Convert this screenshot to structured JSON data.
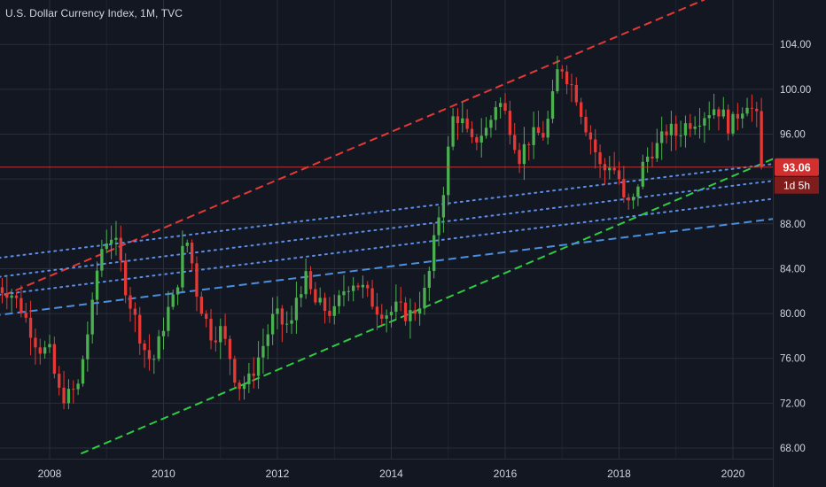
{
  "header": {
    "title": "U.S. Dollar Currency Index, 1M, TVC"
  },
  "price_label": {
    "value": "93.06",
    "countdown": "1d 5h"
  },
  "colors": {
    "background": "#131722",
    "grid": "#2a2e39",
    "up": "#4caf50",
    "down": "#e53935",
    "red_line": "#e53935",
    "green_line": "#2ecc40",
    "blue_dashed": "#4a8fe0",
    "blue_dotted": "#5b8ee6",
    "label_bg": "#d32f2f"
  },
  "chart_data": {
    "type": "candlestick",
    "xlim": [
      2007.0,
      2020.8
    ],
    "ylim": [
      67.5,
      106.5
    ],
    "y_ticks": [
      68.0,
      72.0,
      76.0,
      80.0,
      84.0,
      88.0,
      92.0,
      96.0,
      100.0,
      104.0
    ],
    "y_tick_labels": [
      "68.00",
      "72.00",
      "76.00",
      "80.00",
      "84.00",
      "88.00",
      "",
      "96.00",
      "100.00",
      "104.00"
    ],
    "x_ticks": [
      2008,
      2010,
      2012,
      2014,
      2016,
      2018,
      2020
    ],
    "x_tick_labels": [
      "2008",
      "2010",
      "2012",
      "2014",
      "2016",
      "2018",
      "2020"
    ],
    "last_price": 93.06,
    "grid": true,
    "close_anchors": [
      [
        2007.0,
        82.5
      ],
      [
        2007.3,
        82.0
      ],
      [
        2007.5,
        80.5
      ],
      [
        2007.8,
        77.0
      ],
      [
        2008.0,
        76.5
      ],
      [
        2008.15,
        73.0
      ],
      [
        2008.3,
        72.5
      ],
      [
        2008.5,
        73.5
      ],
      [
        2008.6,
        76.5
      ],
      [
        2008.75,
        80.5
      ],
      [
        2008.85,
        84.5
      ],
      [
        2008.95,
        86.5
      ],
      [
        2009.1,
        87.0
      ],
      [
        2009.2,
        85.5
      ],
      [
        2009.35,
        82.0
      ],
      [
        2009.5,
        79.5
      ],
      [
        2009.65,
        77.0
      ],
      [
        2009.8,
        75.5
      ],
      [
        2009.9,
        77.0
      ],
      [
        2010.05,
        80.0
      ],
      [
        2010.2,
        81.5
      ],
      [
        2010.35,
        86.0
      ],
      [
        2010.45,
        86.5
      ],
      [
        2010.55,
        82.5
      ],
      [
        2010.7,
        80.0
      ],
      [
        2010.85,
        78.0
      ],
      [
        2011.0,
        78.5
      ],
      [
        2011.15,
        76.5
      ],
      [
        2011.3,
        73.5
      ],
      [
        2011.5,
        74.0
      ],
      [
        2011.7,
        76.5
      ],
      [
        2011.85,
        78.5
      ],
      [
        2011.95,
        80.0
      ],
      [
        2012.1,
        79.0
      ],
      [
        2012.25,
        79.0
      ],
      [
        2012.35,
        82.0
      ],
      [
        2012.5,
        83.0
      ],
      [
        2012.65,
        81.0
      ],
      [
        2012.8,
        80.5
      ],
      [
        2013.0,
        80.0
      ],
      [
        2013.15,
        82.0
      ],
      [
        2013.3,
        83.0
      ],
      [
        2013.45,
        82.5
      ],
      [
        2013.6,
        81.5
      ],
      [
        2013.75,
        80.5
      ],
      [
        2013.95,
        80.0
      ],
      [
        2014.1,
        80.5
      ],
      [
        2014.3,
        79.8
      ],
      [
        2014.45,
        80.5
      ],
      [
        2014.6,
        82.0
      ],
      [
        2014.7,
        84.5
      ],
      [
        2014.8,
        88.0
      ],
      [
        2014.9,
        90.5
      ],
      [
        2015.0,
        94.5
      ],
      [
        2015.1,
        98.0
      ],
      [
        2015.25,
        97.0
      ],
      [
        2015.4,
        95.0
      ],
      [
        2015.55,
        96.0
      ],
      [
        2015.7,
        96.5
      ],
      [
        2015.85,
        99.0
      ],
      [
        2015.95,
        98.5
      ],
      [
        2016.1,
        96.5
      ],
      [
        2016.25,
        94.0
      ],
      [
        2016.4,
        95.5
      ],
      [
        2016.55,
        96.0
      ],
      [
        2016.7,
        96.0
      ],
      [
        2016.85,
        99.5
      ],
      [
        2016.95,
        102.5
      ],
      [
        2017.1,
        101.0
      ],
      [
        2017.25,
        99.5
      ],
      [
        2017.4,
        97.0
      ],
      [
        2017.55,
        95.0
      ],
      [
        2017.7,
        92.5
      ],
      [
        2017.85,
        93.5
      ],
      [
        2018.0,
        92.0
      ],
      [
        2018.1,
        89.5
      ],
      [
        2018.25,
        90.0
      ],
      [
        2018.4,
        93.0
      ],
      [
        2018.55,
        94.5
      ],
      [
        2018.7,
        95.0
      ],
      [
        2018.85,
        96.5
      ],
      [
        2019.0,
        96.0
      ],
      [
        2019.2,
        97.0
      ],
      [
        2019.4,
        97.5
      ],
      [
        2019.55,
        98.0
      ],
      [
        2019.7,
        98.5
      ],
      [
        2019.85,
        97.5
      ],
      [
        2019.95,
        96.5
      ],
      [
        2020.1,
        98.0
      ],
      [
        2020.25,
        99.0
      ],
      [
        2020.35,
        98.0
      ],
      [
        2020.45,
        97.0
      ],
      [
        2020.55,
        93.06
      ]
    ],
    "trend_lines": [
      {
        "style": "dashed",
        "color": "red",
        "from": [
          2007.0,
          81.2
        ],
        "to": [
          2019.5,
          108.0
        ]
      },
      {
        "style": "dashed",
        "color": "green",
        "from": [
          2008.55,
          67.5
        ],
        "to": [
          2020.8,
          94.0
        ]
      },
      {
        "style": "dashed",
        "color": "blue",
        "from": [
          2007.0,
          79.8
        ],
        "to": [
          2020.8,
          88.5
        ]
      },
      {
        "style": "dotted",
        "color": "blue",
        "from": [
          2007.0,
          84.9
        ],
        "to": [
          2020.8,
          93.4
        ]
      },
      {
        "style": "dotted",
        "color": "blue",
        "from": [
          2007.0,
          83.2
        ],
        "to": [
          2020.8,
          91.9
        ]
      },
      {
        "style": "dotted",
        "color": "blue",
        "from": [
          2007.0,
          81.6
        ],
        "to": [
          2020.8,
          90.3
        ]
      }
    ]
  }
}
